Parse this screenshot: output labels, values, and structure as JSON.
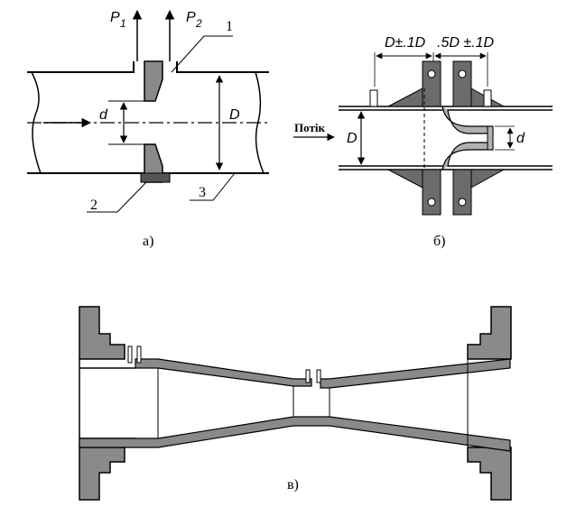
{
  "figure_a": {
    "label": "а)",
    "p1_letter": "P",
    "p1_sub": "1",
    "p2_letter": "P",
    "p2_sub": "2",
    "callout_1": "1",
    "callout_2": "2",
    "callout_3": "3",
    "small_diameter": "d",
    "large_diameter": "D"
  },
  "figure_b": {
    "label": "б)",
    "dim_upstream": "D±.1D",
    "dim_downstream": ".5D ±.1D",
    "flow_label": "Потік",
    "large_diameter": "D",
    "small_diameter": "d"
  },
  "figure_c": {
    "label": "в)"
  },
  "colors": {
    "part_fill": "#8a8a8a",
    "stroke": "#000000"
  }
}
